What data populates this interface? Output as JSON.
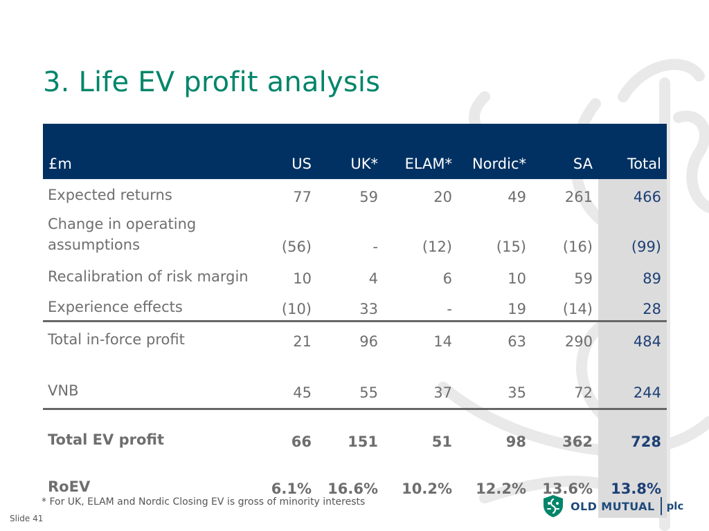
{
  "slide_title": "3. Life EV profit analysis",
  "table": {
    "headers": [
      "£m",
      "US",
      "UK*",
      "ELAM*",
      "Nordic*",
      "SA",
      "Total"
    ],
    "rows": [
      {
        "label": "Expected returns",
        "values": [
          "77",
          "59",
          "20",
          "49",
          "261",
          "466"
        ]
      },
      {
        "label": "Change in operating assumptions",
        "values": [
          "(56)",
          "-",
          "(12)",
          "(15)",
          "(16)",
          "(99)"
        ]
      },
      {
        "label": "Recalibration of risk margin",
        "values": [
          "10",
          "4",
          "6",
          "10",
          "59",
          "89"
        ]
      },
      {
        "label": "Experience effects",
        "values": [
          "(10)",
          "33",
          "-",
          "19",
          "(14)",
          "28"
        ]
      },
      {
        "label": "Total in-force profit",
        "values": [
          "21",
          "96",
          "14",
          "63",
          "290",
          "484"
        ]
      },
      {
        "label": "VNB",
        "values": [
          "45",
          "55",
          "37",
          "35",
          "72",
          "244"
        ]
      },
      {
        "label": "Total EV profit",
        "values": [
          "66",
          "151",
          "51",
          "98",
          "362",
          "728"
        ]
      },
      {
        "label": "RoEV",
        "values": [
          "6.1%",
          "16.6%",
          "10.2%",
          "12.2%",
          "13.6%",
          "13.8%"
        ]
      }
    ]
  },
  "footnote": "* For UK, ELAM and Nordic Closing EV is gross of minority interests",
  "slide_number": "Slide 41",
  "logo": {
    "name": "OLD MUTUAL",
    "suffix": "plc"
  },
  "colors": {
    "title": "#00856a",
    "header_bg": "#003162",
    "total_column_bg": "#dcdcdc",
    "total_text": "#1d3f75",
    "body_text": "#6e6e6e"
  }
}
